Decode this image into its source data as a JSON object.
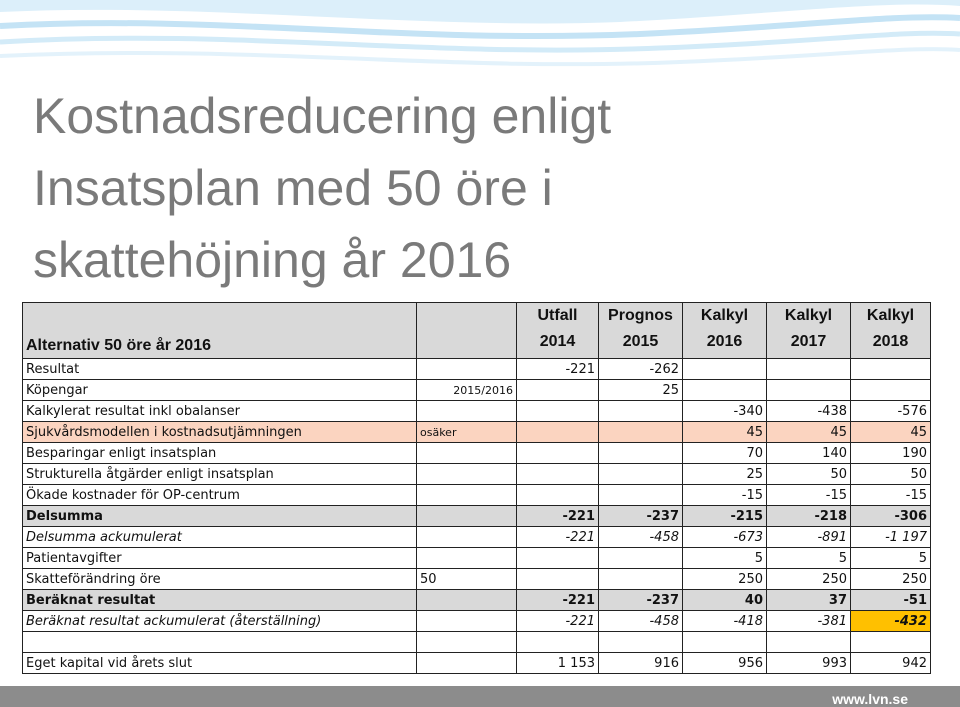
{
  "title_lines": [
    "Kostnadsreducering enligt",
    "Insatsplan med 50 öre i",
    "skattehöjning år 2016"
  ],
  "table": {
    "header": {
      "label": "Alternativ 50 öre år 2016",
      "columns": [
        {
          "l1": "Utfall",
          "l2": "2014"
        },
        {
          "l1": "Prognos",
          "l2": "2015"
        },
        {
          "l1": "Kalkyl",
          "l2": "2016"
        },
        {
          "l1": "Kalkyl",
          "l2": "2017"
        },
        {
          "l1": "Kalkyl",
          "l2": "2018"
        }
      ]
    },
    "rows": [
      {
        "label": "Resultat",
        "note": "",
        "v": [
          "-221",
          "-262",
          "",
          "",
          ""
        ]
      },
      {
        "label": "Köpengar",
        "note": "2015/2016",
        "v": [
          "",
          "25",
          "",
          "",
          ""
        ]
      },
      {
        "label": "Kalkylerat resultat inkl obalanser",
        "note": "",
        "v": [
          "",
          "",
          "-340",
          "-438",
          "-576"
        ]
      },
      {
        "label": "Sjukvårdsmodellen i kostnadsutjämningen",
        "note": "osäker",
        "v": [
          "",
          "",
          "45",
          "45",
          "45"
        ]
      },
      {
        "label": "Besparingar enligt insatsplan",
        "note": "",
        "v": [
          "",
          "",
          "70",
          "140",
          "190"
        ]
      },
      {
        "label": "Strukturella åtgärder enligt insatsplan",
        "note": "",
        "v": [
          "",
          "",
          "25",
          "50",
          "50"
        ]
      },
      {
        "label": "Ökade kostnader för OP-centrum",
        "note": "",
        "v": [
          "",
          "",
          "-15",
          "-15",
          "-15"
        ]
      },
      {
        "label": "Delsumma",
        "note": "",
        "v": [
          "-221",
          "-237",
          "-215",
          "-218",
          "-306"
        ]
      },
      {
        "label": "Delsumma ackumulerat",
        "note": "",
        "v": [
          "-221",
          "-458",
          "-673",
          "-891",
          "-1 197"
        ]
      },
      {
        "label": "Patientavgifter",
        "note": "",
        "v": [
          "",
          "",
          "5",
          "5",
          "5"
        ]
      },
      {
        "label": "Skatteförändring öre",
        "note": "50",
        "v": [
          "",
          "",
          "250",
          "250",
          "250"
        ]
      },
      {
        "label": "Beräknat resultat",
        "note": "",
        "v": [
          "-221",
          "-237",
          "40",
          "37",
          "-51"
        ]
      },
      {
        "label": "Beräknat resultat ackumulerat (återställning)",
        "note": "",
        "v": [
          "-221",
          "-458",
          "-418",
          "-381",
          "-432"
        ]
      },
      {
        "label": "Eget kapital vid årets slut",
        "note": "",
        "v": [
          "1 153",
          "916",
          "956",
          "993",
          "942"
        ]
      }
    ]
  },
  "footer": {
    "site": "www.lvn.se"
  },
  "colors": {
    "rose_row": "#fbd4c0",
    "highlight": "#ffc000",
    "waves": "#cfe8f7",
    "footer_bar": "#8c8c8c"
  }
}
